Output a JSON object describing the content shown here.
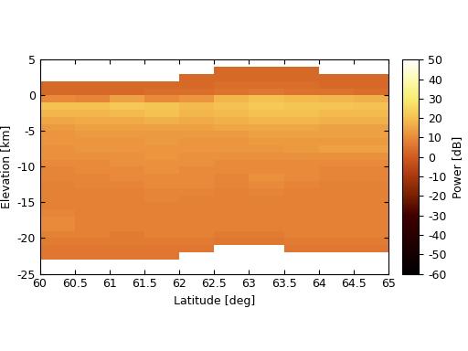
{
  "chart_data": {
    "type": "heatmap",
    "xlabel": "Latitude [deg]",
    "ylabel": "Elevation [km]",
    "x": [
      60.25,
      60.75,
      61.25,
      61.75,
      62.25,
      62.75,
      63.25,
      63.75,
      64.25,
      64.75
    ],
    "y": [
      -23.5,
      -22.5,
      -21.5,
      -20.5,
      -19.5,
      -18.5,
      -17.5,
      -16.5,
      -15.5,
      -14.5,
      -13.5,
      -12.5,
      -11.5,
      -10.5,
      -9.5,
      -8.5,
      -7.5,
      -6.5,
      -5.5,
      -4.5,
      -3.5,
      -2.5,
      -1.5,
      -0.5,
      0.5,
      1.5,
      2.5,
      3.5,
      4.5
    ],
    "cells": [
      [
        null,
        null,
        null,
        null,
        null,
        null,
        null,
        null,
        null,
        null
      ],
      [
        6,
        6,
        6,
        6,
        null,
        null,
        null,
        null,
        null,
        null
      ],
      [
        6,
        6,
        6,
        6,
        6,
        null,
        null,
        6,
        6,
        6
      ],
      [
        7,
        7,
        7,
        7,
        7,
        6,
        6,
        7,
        7,
        7
      ],
      [
        8,
        8,
        7,
        8,
        8,
        7,
        7,
        8,
        8,
        8
      ],
      [
        10,
        8,
        8,
        8,
        8,
        8,
        8,
        8,
        8,
        8
      ],
      [
        10,
        8,
        8,
        8,
        8,
        8,
        8,
        8,
        8,
        8
      ],
      [
        9,
        8,
        8,
        8,
        8,
        8,
        8,
        8,
        8,
        8
      ],
      [
        8,
        8,
        8,
        8,
        8,
        8,
        8,
        8,
        8,
        8
      ],
      [
        8,
        8,
        8,
        9,
        8,
        8,
        8,
        8,
        8,
        8
      ],
      [
        8,
        8,
        8,
        9,
        9,
        8,
        9,
        8,
        8,
        8
      ],
      [
        8,
        9,
        9,
        10,
        10,
        9,
        10,
        9,
        8,
        8
      ],
      [
        9,
        9,
        10,
        10,
        10,
        9,
        11,
        10,
        9,
        9
      ],
      [
        9,
        10,
        10,
        11,
        10,
        10,
        10,
        10,
        9,
        9
      ],
      [
        10,
        10,
        11,
        11,
        11,
        10,
        10,
        10,
        10,
        10
      ],
      [
        11,
        11,
        11,
        12,
        11,
        11,
        11,
        11,
        11,
        11
      ],
      [
        11,
        12,
        12,
        12,
        12,
        12,
        12,
        13,
        14,
        14
      ],
      [
        12,
        12,
        12,
        13,
        12,
        12,
        13,
        13,
        13,
        13
      ],
      [
        12,
        13,
        13,
        13,
        13,
        13,
        14,
        14,
        14,
        14
      ],
      [
        13,
        14,
        14,
        14,
        14,
        15,
        15,
        15,
        14,
        14
      ],
      [
        15,
        16,
        16,
        17,
        16,
        17,
        18,
        18,
        17,
        17
      ],
      [
        18,
        18,
        19,
        20,
        18,
        19,
        20,
        20,
        19,
        19
      ],
      [
        20,
        20,
        22,
        21,
        19,
        20,
        22,
        21,
        21,
        20
      ],
      [
        10,
        9,
        14,
        10,
        12,
        18,
        20,
        19,
        18,
        17
      ],
      [
        3,
        3,
        3,
        4,
        4,
        5,
        6,
        5,
        5,
        4
      ],
      [
        3,
        3,
        3,
        3,
        3,
        4,
        4,
        4,
        3,
        3
      ],
      [
        null,
        null,
        null,
        null,
        3,
        3,
        3,
        3,
        3,
        3
      ],
      [
        null,
        null,
        null,
        null,
        null,
        3,
        3,
        3,
        null,
        null
      ],
      [
        null,
        null,
        null,
        null,
        null,
        null,
        null,
        null,
        null,
        null
      ]
    ],
    "xlim": [
      60,
      65
    ],
    "xticks": [
      60,
      60.5,
      61,
      61.5,
      62,
      62.5,
      63,
      63.5,
      64,
      64.5,
      65
    ],
    "ylim": [
      -25,
      5
    ],
    "yticks": [
      -25,
      -20,
      -15,
      -10,
      -5,
      0,
      5
    ],
    "grid": false,
    "colorbar": {
      "label": "Power [dB]",
      "range": [
        -60,
        50
      ],
      "ticks": [
        -60,
        -50,
        -40,
        -30,
        -20,
        -10,
        0,
        10,
        20,
        30,
        40,
        50
      ]
    }
  }
}
